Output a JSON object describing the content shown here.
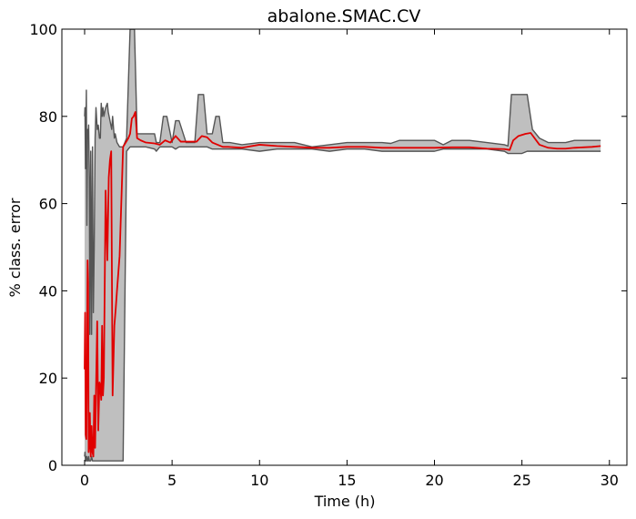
{
  "chart_data": {
    "type": "line",
    "title": "abalone.SMAC.CV",
    "xlabel": "Time (h)",
    "ylabel": "% class. error",
    "xlim": [
      -1.3,
      31
    ],
    "ylim": [
      0,
      100
    ],
    "xticks": [
      0,
      5,
      10,
      15,
      20,
      25,
      30
    ],
    "yticks": [
      0,
      20,
      40,
      60,
      80,
      100
    ],
    "grid": false,
    "legend": "none",
    "colors": {
      "mean_line": "#e00000",
      "band_fill": "#bfbfbf",
      "band_edge": "#555555"
    },
    "series": [
      {
        "role": "mean",
        "x": [
          0.0,
          0.03,
          0.06,
          0.1,
          0.13,
          0.17,
          0.2,
          0.23,
          0.27,
          0.3,
          0.35,
          0.4,
          0.45,
          0.5,
          0.55,
          0.6,
          0.65,
          0.72,
          0.78,
          0.85,
          0.9,
          0.95,
          1.0,
          1.05,
          1.1,
          1.2,
          1.3,
          1.38,
          1.45,
          1.52,
          1.6,
          1.7,
          1.78,
          1.85,
          2.0,
          2.2,
          2.35,
          2.5,
          2.6,
          2.7,
          2.8,
          2.9,
          3.0,
          3.2,
          3.5,
          4.0,
          4.3,
          4.6,
          4.9,
          5.2,
          5.5,
          6.0,
          6.4,
          6.7,
          7.0,
          7.3,
          7.6,
          7.9,
          8.2,
          9.0,
          10.0,
          11.0,
          12.0,
          13.0,
          14.0,
          15.0,
          16.0,
          17.0,
          18.0,
          19.0,
          20.0,
          21.0,
          22.0,
          23.0,
          24.0,
          24.3,
          24.5,
          24.8,
          25.2,
          25.5,
          26.0,
          26.5,
          27.0,
          27.5,
          28.0,
          28.5,
          29.0,
          29.5
        ],
        "y": [
          22,
          35,
          7,
          6,
          20,
          47,
          42,
          3,
          5,
          12,
          2,
          9,
          3,
          2,
          16,
          4,
          17,
          33,
          8,
          19,
          18,
          15,
          32,
          16,
          20,
          63,
          47,
          66,
          70,
          72,
          16,
          32,
          36,
          40,
          48,
          73,
          74,
          75,
          76,
          79.5,
          80,
          81,
          75,
          74.5,
          74,
          73.8,
          73.5,
          74.5,
          74,
          75.5,
          74.2,
          74.2,
          74.2,
          75.5,
          75.2,
          74,
          73.5,
          73,
          73,
          72.8,
          73.5,
          73.2,
          73,
          72.8,
          72.8,
          73,
          73,
          72.8,
          72.8,
          72.8,
          72.8,
          72.9,
          72.9,
          72.6,
          72.5,
          72.3,
          74.5,
          75.5,
          76,
          76.2,
          73.5,
          72.8,
          72.6,
          72.6,
          72.8,
          72.9,
          73,
          73.2
        ]
      },
      {
        "role": "band-upper",
        "x": [
          0.0,
          0.02,
          0.05,
          0.08,
          0.1,
          0.13,
          0.17,
          0.2,
          0.23,
          0.27,
          0.3,
          0.35,
          0.4,
          0.45,
          0.5,
          0.55,
          0.6,
          0.65,
          0.72,
          0.78,
          0.85,
          0.9,
          0.95,
          1.0,
          1.05,
          1.1,
          1.2,
          1.3,
          1.35,
          1.45,
          1.5,
          1.55,
          1.6,
          1.7,
          1.75,
          1.8,
          1.85,
          2.0,
          2.2,
          2.4,
          2.6,
          2.65,
          2.75,
          2.85,
          3.0,
          3.5,
          4.0,
          4.1,
          4.3,
          4.5,
          4.7,
          5.0,
          5.2,
          5.4,
          5.8,
          6.3,
          6.5,
          6.8,
          7.0,
          7.3,
          7.5,
          7.7,
          7.9,
          8.3,
          9.0,
          10.0,
          11.0,
          12.0,
          13.0,
          14.0,
          15.0,
          16.0,
          17.0,
          17.5,
          18.0,
          19.0,
          20.0,
          20.5,
          21.0,
          22.0,
          23.0,
          24.0,
          24.2,
          24.4,
          25.0,
          25.3,
          25.6,
          26.0,
          26.5,
          27.0,
          27.5,
          28.0,
          29.0,
          29.5
        ],
        "y": [
          80,
          82,
          68,
          79,
          86,
          55,
          77,
          75,
          78,
          66,
          30,
          72,
          30,
          73,
          35,
          50,
          75,
          82,
          77,
          78,
          75,
          75,
          83,
          80,
          82,
          80,
          82,
          83,
          81,
          79,
          78,
          77,
          80,
          75,
          76,
          75,
          74,
          73,
          73,
          75,
          100,
          100,
          100,
          100,
          76,
          76,
          76,
          74,
          74,
          80,
          80,
          74,
          79,
          79,
          74,
          74,
          85,
          85,
          76,
          76,
          80,
          80,
          74,
          74,
          73.5,
          74,
          74,
          74,
          73,
          73.5,
          74,
          74,
          74,
          73.8,
          74.5,
          74.5,
          74.5,
          73.5,
          74.5,
          74.5,
          74,
          73.5,
          73.2,
          85,
          85,
          85,
          77,
          75,
          74,
          74,
          74,
          74.5,
          74.5,
          74.5
        ]
      },
      {
        "role": "band-lower",
        "x": [
          0.0,
          0.02,
          0.05,
          0.08,
          0.1,
          0.13,
          0.17,
          0.2,
          0.23,
          0.27,
          0.3,
          0.35,
          0.4,
          0.45,
          0.5,
          0.55,
          0.6,
          0.65,
          0.72,
          0.78,
          0.85,
          0.9,
          0.95,
          1.0,
          1.05,
          1.1,
          1.2,
          1.3,
          1.35,
          1.45,
          1.5,
          1.55,
          1.6,
          1.7,
          1.75,
          1.8,
          1.85,
          2.0,
          2.2,
          2.4,
          2.6,
          2.65,
          2.75,
          2.85,
          3.0,
          3.5,
          4.0,
          4.1,
          4.3,
          4.5,
          4.7,
          5.0,
          5.2,
          5.4,
          5.8,
          6.3,
          6.5,
          6.8,
          7.0,
          7.3,
          7.5,
          7.7,
          7.9,
          8.3,
          9.0,
          10.0,
          11.0,
          12.0,
          13.0,
          14.0,
          15.0,
          16.0,
          17.0,
          17.5,
          18.0,
          19.0,
          20.0,
          20.5,
          21.0,
          22.0,
          23.0,
          24.0,
          24.2,
          24.4,
          25.0,
          25.3,
          25.6,
          26.0,
          26.5,
          27.0,
          27.5,
          28.0,
          29.0,
          29.5
        ],
        "y": [
          2,
          3,
          1,
          2,
          1,
          2,
          1,
          1,
          2,
          1,
          1,
          1,
          2,
          1,
          1,
          1,
          1,
          1,
          1,
          1,
          1,
          1,
          1,
          1,
          1,
          1,
          1,
          1,
          1,
          1,
          1,
          1,
          1,
          1,
          1,
          1,
          1,
          1,
          1,
          72,
          73,
          73,
          73,
          73,
          73,
          73,
          72.5,
          72,
          73,
          73,
          73,
          73,
          72.5,
          73,
          73,
          73,
          73,
          73,
          73,
          72.5,
          72.5,
          72.5,
          72.5,
          72.5,
          72.5,
          72,
          72.5,
          72.5,
          72.5,
          72,
          72.5,
          72.5,
          72,
          72,
          72,
          72,
          72,
          72.5,
          72.5,
          72.5,
          72.5,
          72,
          71.5,
          71.5,
          71.5,
          72,
          72,
          72,
          72,
          72,
          72,
          72,
          72,
          72
        ]
      }
    ]
  }
}
